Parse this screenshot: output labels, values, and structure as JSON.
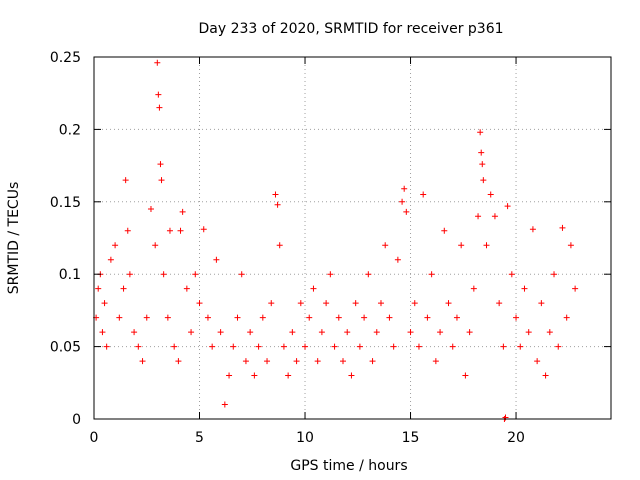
{
  "chart_data": {
    "type": "scatter",
    "title": "Day 233 of 2020, SRMTID for receiver p361",
    "xlabel": "GPS time / hours",
    "ylabel": "SRMTID / TECUs",
    "xlim": [
      0,
      24.5
    ],
    "ylim": [
      0,
      0.25
    ],
    "x_ticks": [
      0,
      5,
      10,
      15,
      20
    ],
    "x_tick_labels": [
      "0",
      "5",
      "10",
      "15",
      "20"
    ],
    "y_ticks": [
      0,
      0.05,
      0.1,
      0.15,
      0.2,
      0.25
    ],
    "y_tick_labels": [
      "0",
      "0.05",
      "0.1",
      "0.15",
      "0.2",
      "0.25"
    ],
    "grid": true,
    "marker": "+",
    "color": "#ff0000",
    "series": [
      {
        "name": "SRMTID",
        "points": [
          [
            0.1,
            0.07
          ],
          [
            0.2,
            0.09
          ],
          [
            0.3,
            0.1
          ],
          [
            0.4,
            0.06
          ],
          [
            0.5,
            0.08
          ],
          [
            0.6,
            0.05
          ],
          [
            0.8,
            0.11
          ],
          [
            1.0,
            0.12
          ],
          [
            1.2,
            0.07
          ],
          [
            1.4,
            0.09
          ],
          [
            1.5,
            0.165
          ],
          [
            1.6,
            0.13
          ],
          [
            1.7,
            0.1
          ],
          [
            1.9,
            0.06
          ],
          [
            2.1,
            0.05
          ],
          [
            2.3,
            0.04
          ],
          [
            2.5,
            0.07
          ],
          [
            2.7,
            0.145
          ],
          [
            2.9,
            0.12
          ],
          [
            3.0,
            0.246
          ],
          [
            3.05,
            0.224
          ],
          [
            3.1,
            0.215
          ],
          [
            3.15,
            0.176
          ],
          [
            3.2,
            0.165
          ],
          [
            3.3,
            0.1
          ],
          [
            3.5,
            0.07
          ],
          [
            3.6,
            0.13
          ],
          [
            3.8,
            0.05
          ],
          [
            4.0,
            0.04
          ],
          [
            4.1,
            0.13
          ],
          [
            4.2,
            0.143
          ],
          [
            4.4,
            0.09
          ],
          [
            4.6,
            0.06
          ],
          [
            4.8,
            0.1
          ],
          [
            5.0,
            0.08
          ],
          [
            5.2,
            0.131
          ],
          [
            5.4,
            0.07
          ],
          [
            5.6,
            0.05
          ],
          [
            5.8,
            0.11
          ],
          [
            6.0,
            0.06
          ],
          [
            6.2,
            0.01
          ],
          [
            6.4,
            0.03
          ],
          [
            6.6,
            0.05
          ],
          [
            6.8,
            0.07
          ],
          [
            7.0,
            0.1
          ],
          [
            7.2,
            0.04
          ],
          [
            7.4,
            0.06
          ],
          [
            7.6,
            0.03
          ],
          [
            7.8,
            0.05
          ],
          [
            8.0,
            0.07
          ],
          [
            8.2,
            0.04
          ],
          [
            8.4,
            0.08
          ],
          [
            8.6,
            0.155
          ],
          [
            8.7,
            0.148
          ],
          [
            8.8,
            0.12
          ],
          [
            9.0,
            0.05
          ],
          [
            9.2,
            0.03
          ],
          [
            9.4,
            0.06
          ],
          [
            9.6,
            0.04
          ],
          [
            9.8,
            0.08
          ],
          [
            10.0,
            0.05
          ],
          [
            10.2,
            0.07
          ],
          [
            10.4,
            0.09
          ],
          [
            10.6,
            0.04
          ],
          [
            10.8,
            0.06
          ],
          [
            11.0,
            0.08
          ],
          [
            11.2,
            0.1
          ],
          [
            11.4,
            0.05
          ],
          [
            11.6,
            0.07
          ],
          [
            11.8,
            0.04
          ],
          [
            12.0,
            0.06
          ],
          [
            12.2,
            0.03
          ],
          [
            12.4,
            0.08
          ],
          [
            12.6,
            0.05
          ],
          [
            12.8,
            0.07
          ],
          [
            13.0,
            0.1
          ],
          [
            13.2,
            0.04
          ],
          [
            13.4,
            0.06
          ],
          [
            13.6,
            0.08
          ],
          [
            13.8,
            0.12
          ],
          [
            14.0,
            0.07
          ],
          [
            14.2,
            0.05
          ],
          [
            14.4,
            0.11
          ],
          [
            14.6,
            0.15
          ],
          [
            14.7,
            0.159
          ],
          [
            14.8,
            0.143
          ],
          [
            15.0,
            0.06
          ],
          [
            15.2,
            0.08
          ],
          [
            15.4,
            0.05
          ],
          [
            15.6,
            0.155
          ],
          [
            15.8,
            0.07
          ],
          [
            16.0,
            0.1
          ],
          [
            16.2,
            0.04
          ],
          [
            16.4,
            0.06
          ],
          [
            16.6,
            0.13
          ],
          [
            16.8,
            0.08
          ],
          [
            17.0,
            0.05
          ],
          [
            17.2,
            0.07
          ],
          [
            17.4,
            0.12
          ],
          [
            17.6,
            0.03
          ],
          [
            17.8,
            0.06
          ],
          [
            18.0,
            0.09
          ],
          [
            18.2,
            0.14
          ],
          [
            18.3,
            0.198
          ],
          [
            18.35,
            0.184
          ],
          [
            18.4,
            0.176
          ],
          [
            18.45,
            0.165
          ],
          [
            18.6,
            0.12
          ],
          [
            18.8,
            0.155
          ],
          [
            19.0,
            0.14
          ],
          [
            19.2,
            0.08
          ],
          [
            19.4,
            0.05
          ],
          [
            19.45,
            0.0
          ],
          [
            19.5,
            0.001
          ],
          [
            19.6,
            0.147
          ],
          [
            19.8,
            0.1
          ],
          [
            20.0,
            0.07
          ],
          [
            20.2,
            0.05
          ],
          [
            20.4,
            0.09
          ],
          [
            20.6,
            0.06
          ],
          [
            20.8,
            0.131
          ],
          [
            21.0,
            0.04
          ],
          [
            21.2,
            0.08
          ],
          [
            21.4,
            0.03
          ],
          [
            21.6,
            0.06
          ],
          [
            21.8,
            0.1
          ],
          [
            22.0,
            0.05
          ],
          [
            22.2,
            0.132
          ],
          [
            22.4,
            0.07
          ],
          [
            22.6,
            0.12
          ],
          [
            22.8,
            0.09
          ]
        ]
      }
    ]
  }
}
